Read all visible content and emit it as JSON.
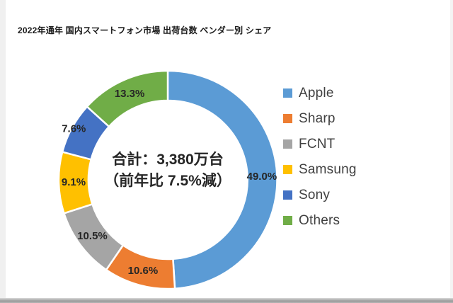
{
  "page": {
    "title": "2022年通年 国内スマートフォン市場 出荷台数 ベンダー別 シェア"
  },
  "center_label": {
    "line1": "合計：3,380万台",
    "line2": "（前年比 7.5%減）"
  },
  "chart_data": {
    "type": "pie",
    "subtype": "donut",
    "title": "2022年通年 国内スマートフォン市場 出荷台数 ベンダー別 シェア",
    "unit": "percent",
    "start_angle_deg": 0,
    "clockwise": true,
    "inner_radius_ratio": 0.73,
    "legend_position": "right",
    "center_annotation": "合計：3,380万台（前年比 7.5%減）",
    "slices": [
      {
        "name": "Apple",
        "value": 49.0,
        "label": "49.0%",
        "color": "#5B9BD5",
        "label_outside": false
      },
      {
        "name": "Sharp",
        "value": 10.6,
        "label": "10.6%",
        "color": "#ED7D31",
        "label_outside": false
      },
      {
        "name": "FCNT",
        "value": 10.5,
        "label": "10.5%",
        "color": "#A5A5A5",
        "label_outside": false
      },
      {
        "name": "Samsung",
        "value": 9.1,
        "label": "9.1%",
        "color": "#FFC000",
        "label_outside": false
      },
      {
        "name": "Sony",
        "value": 7.6,
        "label": "7.6%",
        "color": "#4472C4",
        "label_outside": true
      },
      {
        "name": "Others",
        "value": 13.3,
        "label": "13.3%",
        "color": "#70AD47",
        "label_outside": false
      }
    ]
  }
}
